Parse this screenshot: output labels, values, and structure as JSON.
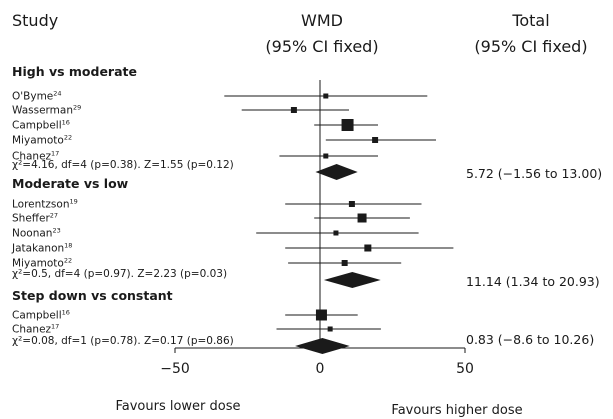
{
  "header": {
    "study": "Study",
    "wmd_line1": "WMD",
    "wmd_line2": "(95% CI fixed)",
    "total_line1": "Total",
    "total_line2": "(95% CI fixed)"
  },
  "footer": {
    "left_label": "Favours lower dose",
    "right_label": "Favours higher dose"
  },
  "colors": {
    "ink": "#1a1a1a",
    "background": "#ffffff"
  },
  "chart_data": {
    "type": "forest",
    "xlim": [
      -50,
      50
    ],
    "ticks": [
      {
        "value": -50,
        "label": "−50"
      },
      {
        "value": 0,
        "label": "0"
      },
      {
        "value": 50,
        "label": "50"
      }
    ],
    "groups": [
      {
        "title": "High vs moderate",
        "studies": [
          {
            "name": "O'Byme",
            "ref": "24",
            "mean": 2.0,
            "low": -33.0,
            "high": 37.0,
            "weight": 5
          },
          {
            "name": "Wasserman",
            "ref": "29",
            "mean": -9.0,
            "low": -27.0,
            "high": 10.0,
            "weight": 6
          },
          {
            "name": "Campbell",
            "ref": "16",
            "mean": 9.5,
            "low": -2.0,
            "high": 20.0,
            "weight": 12
          },
          {
            "name": "Miyamoto",
            "ref": "22",
            "mean": 19.0,
            "low": 2.0,
            "high": 40.0,
            "weight": 6
          },
          {
            "name": "Chanez",
            "ref": "17",
            "mean": 2.0,
            "low": -14.0,
            "high": 20.0,
            "weight": 5
          }
        ],
        "stats": "χ²=4.16, df=4 (p=0.38). Z=1.55 (p=0.12)",
        "pooled": {
          "mean": 5.72,
          "low": -1.56,
          "high": 13.0
        },
        "total_text": "5.72 (−1.56 to 13.00)"
      },
      {
        "title": "Moderate vs low",
        "studies": [
          {
            "name": "Lorentzson",
            "ref": "19",
            "mean": 11.0,
            "low": -12.0,
            "high": 35.0,
            "weight": 6
          },
          {
            "name": "Sheffer",
            "ref": "27",
            "mean": 14.5,
            "low": -2.0,
            "high": 31.0,
            "weight": 9
          },
          {
            "name": "Noonan",
            "ref": "23",
            "mean": 5.5,
            "low": -22.0,
            "high": 34.0,
            "weight": 5
          },
          {
            "name": "Jatakanon",
            "ref": "18",
            "mean": 16.5,
            "low": -12.0,
            "high": 46.0,
            "weight": 7
          },
          {
            "name": "Miyamoto",
            "ref": "22",
            "mean": 8.5,
            "low": -11.0,
            "high": 28.0,
            "weight": 6
          }
        ],
        "stats": "χ²=0.5, df=4 (p=0.97). Z=2.23 (p=0.03)",
        "pooled": {
          "mean": 11.14,
          "low": 1.34,
          "high": 20.93
        },
        "total_text": "11.14 (1.34 to 20.93)"
      },
      {
        "title": "Step down vs constant",
        "studies": [
          {
            "name": "Campbell",
            "ref": "16",
            "mean": 0.5,
            "low": -12.0,
            "high": 13.0,
            "weight": 11
          },
          {
            "name": "Chanez",
            "ref": "17",
            "mean": 3.5,
            "low": -15.0,
            "high": 21.0,
            "weight": 5
          }
        ],
        "stats": "χ²=0.08, df=1 (p=0.78). Z=0.17 (p=0.86)",
        "pooled": {
          "mean": 0.83,
          "low": -8.6,
          "high": 10.26
        },
        "total_text": "0.83 (−8.6 to 10.26)"
      }
    ]
  }
}
